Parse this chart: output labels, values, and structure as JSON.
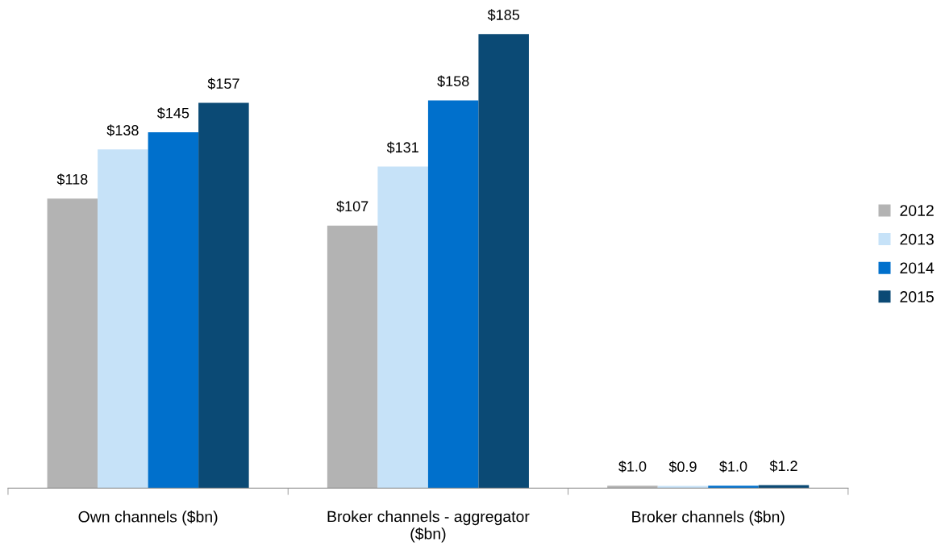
{
  "chart_data": {
    "type": "bar",
    "categories": [
      "Own channels ($bn)",
      "Broker channels - aggregator\n($bn)",
      "Broker channels ($bn)"
    ],
    "series": [
      {
        "name": "2012",
        "color": "#b3b3b3",
        "values": [
          118,
          107,
          1.0
        ],
        "value_labels": [
          "$118",
          "$107",
          "$1.0"
        ]
      },
      {
        "name": "2013",
        "color": "#c6e2f8",
        "values": [
          138,
          131,
          0.9
        ],
        "value_labels": [
          "$138",
          "$131",
          "$0.9"
        ]
      },
      {
        "name": "2014",
        "color": "#0070cc",
        "values": [
          145,
          158,
          1.0
        ],
        "value_labels": [
          "$145",
          "$158",
          "$1.0"
        ]
      },
      {
        "name": "2015",
        "color": "#0b4a75",
        "values": [
          157,
          185,
          1.2
        ],
        "value_labels": [
          "$157",
          "$185",
          "$1.2"
        ]
      }
    ],
    "legend": "right",
    "grid": false,
    "tick_labels": "x"
  }
}
